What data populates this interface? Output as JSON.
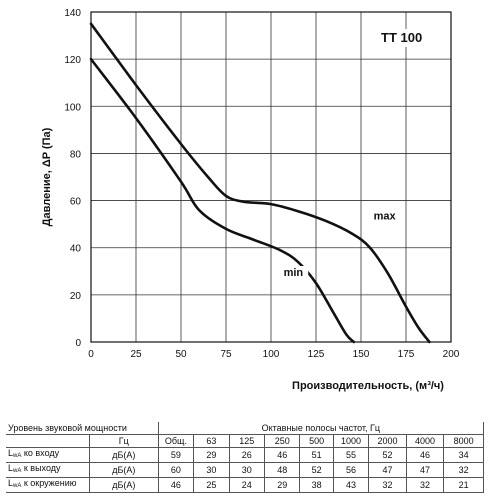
{
  "chart_data": {
    "type": "line",
    "model": "TT 100",
    "xlabel": "Производительность, (м³/ч)",
    "ylabel": "Давление, ΔP (Па)",
    "xlim": [
      0,
      200
    ],
    "ylim": [
      0,
      140
    ],
    "xticks": [
      "0",
      "25",
      "50",
      "75",
      "100",
      "125",
      "150",
      "175",
      "200"
    ],
    "yticks": [
      "0",
      "20",
      "40",
      "60",
      "80",
      "100",
      "120",
      "140"
    ],
    "grid": true,
    "series": [
      {
        "name": "max",
        "x": [
          0,
          25,
          50,
          65,
          75,
          85,
          100,
          115,
          130,
          145,
          155,
          165,
          175,
          182,
          188
        ],
        "y": [
          135,
          109,
          84,
          70,
          62,
          59.5,
          58.5,
          55.5,
          51.5,
          46,
          40,
          29,
          15,
          6,
          0
        ]
      },
      {
        "name": "min",
        "x": [
          0,
          25,
          50,
          60,
          75,
          90,
          105,
          115,
          125,
          135,
          142,
          146
        ],
        "y": [
          120,
          95,
          68,
          56,
          48,
          43.5,
          39,
          34,
          25,
          12,
          3,
          0
        ]
      }
    ]
  },
  "table": {
    "title": "Уровень звуковой мощности",
    "bands_title": "Октавные полосы частот, Гц",
    "hz_label": "Гц",
    "columns": [
      "Общ.",
      "63",
      "125",
      "250",
      "500",
      "1000",
      "2000",
      "4000",
      "8000"
    ],
    "rows": [
      {
        "label_main": "L",
        "label_sub": "wA",
        "label_rest": " ко входу",
        "unit": "дБ(A)",
        "values": [
          "59",
          "29",
          "26",
          "46",
          "51",
          "55",
          "52",
          "46",
          "34"
        ]
      },
      {
        "label_main": "L",
        "label_sub": "wA",
        "label_rest": " к выходу",
        "unit": "дБ(A)",
        "values": [
          "60",
          "30",
          "30",
          "48",
          "52",
          "56",
          "47",
          "47",
          "32"
        ]
      },
      {
        "label_main": "L",
        "label_sub": "wA",
        "label_rest": " к окружению",
        "unit": "дБ(A)",
        "values": [
          "46",
          "25",
          "24",
          "29",
          "38",
          "43",
          "32",
          "32",
          "21"
        ]
      }
    ]
  }
}
